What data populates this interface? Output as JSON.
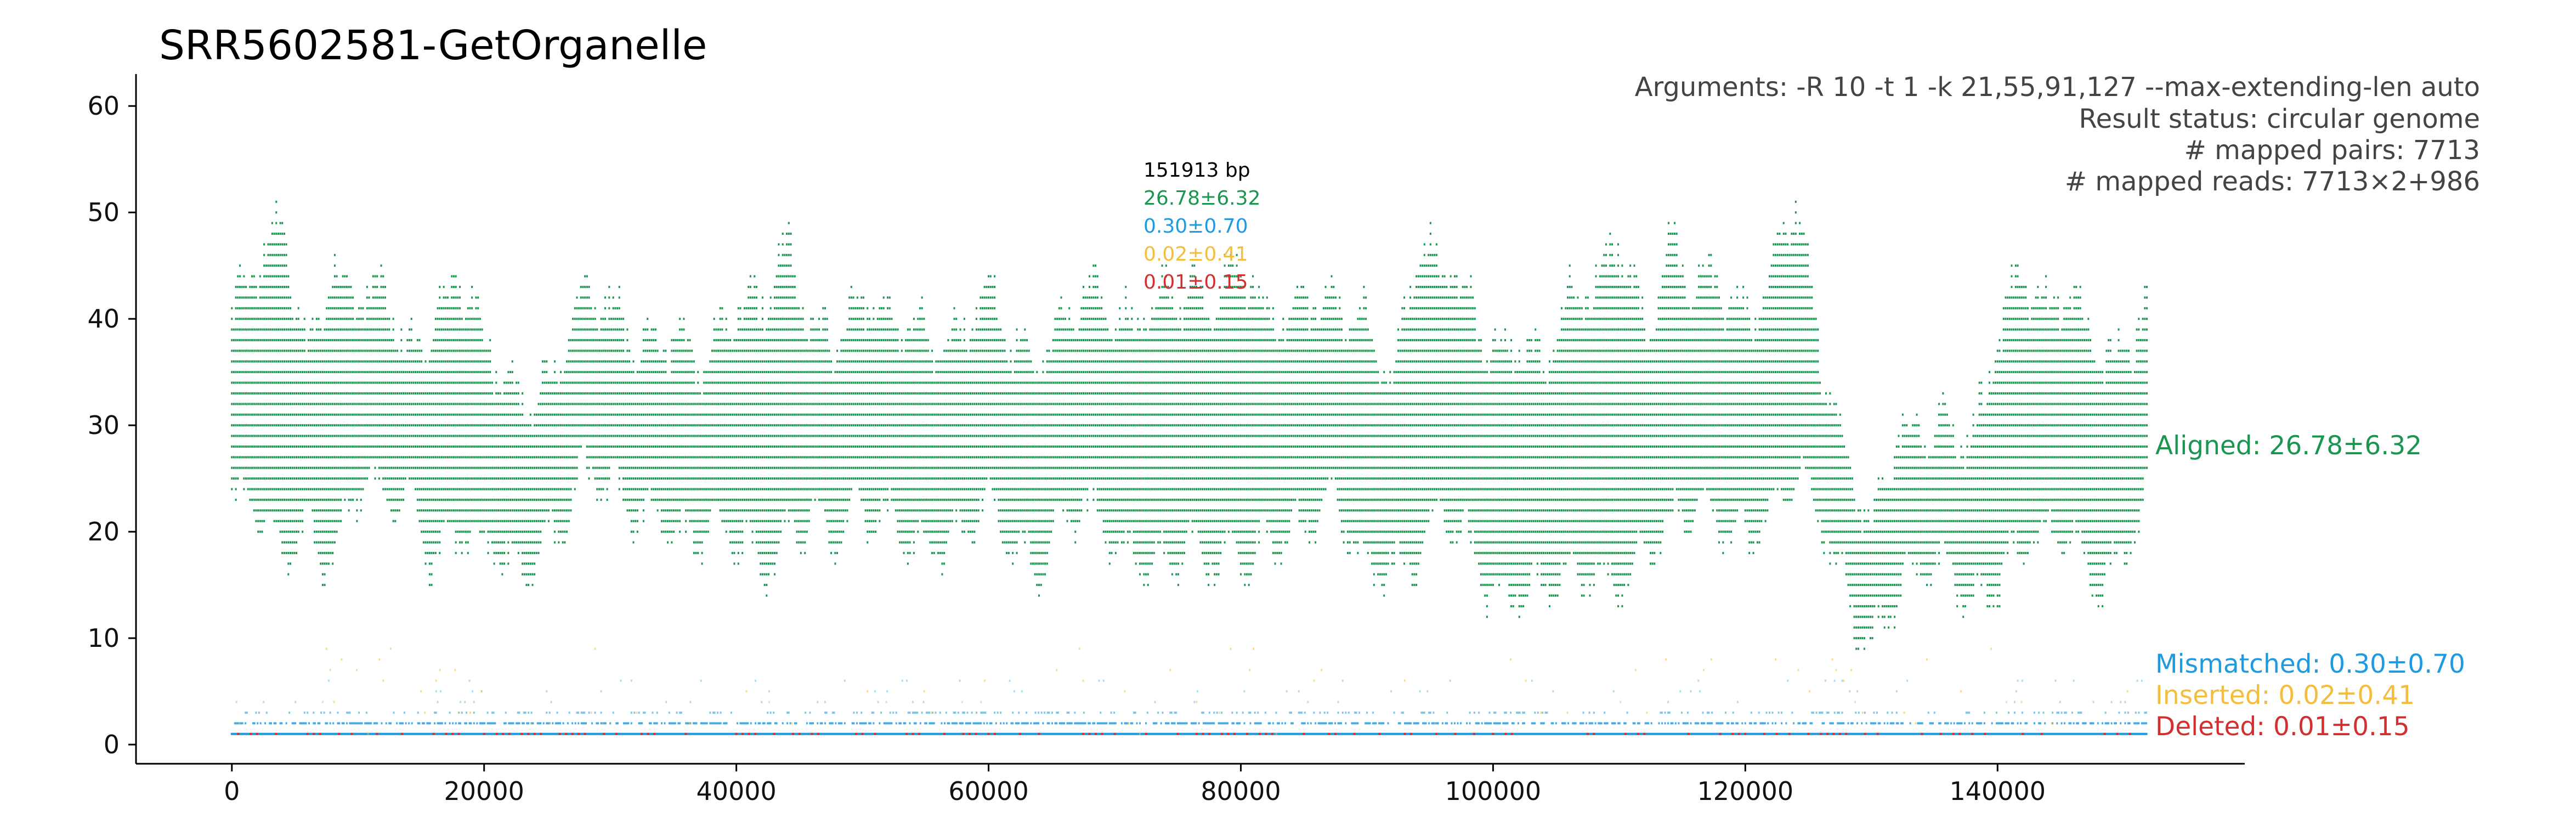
{
  "chart_data": {
    "type": "scatter",
    "title": "SRR5602581-GetOrganelle",
    "xlabel": "",
    "ylabel": "",
    "xlim": [
      -7600,
      159600
    ],
    "ylim": [
      -1.8,
      63
    ],
    "x_ticks": [
      0,
      20000,
      40000,
      60000,
      80000,
      100000,
      120000,
      140000
    ],
    "y_ticks": [
      0,
      10,
      20,
      30,
      40,
      50,
      60
    ],
    "genome_length": 151913,
    "info": [
      "Arguments: -R 10 -t 1 -k 21,55,91,127 --max-extending-len auto",
      "Result status: circular genome",
      "# mapped pairs: 7713",
      "# mapped reads: 7713×2+986"
    ],
    "summary": {
      "length": "151913 bp",
      "aligned": "26.78±6.32",
      "mismatched": "0.30±0.70",
      "inserted": "0.02±0.41",
      "deleted": "0.01±0.15"
    },
    "series": [
      {
        "name": "Aligned: 26.78±6.32",
        "color": "#1a9650",
        "mean": 26.78,
        "sd": 6.32,
        "profile_x": [
          0,
          2000,
          4000,
          6000,
          8000,
          10000,
          12000,
          14000,
          16000,
          18000,
          20000,
          22000,
          24000,
          26000,
          28000,
          30000,
          32000,
          34000,
          36000,
          38000,
          40000,
          42000,
          44000,
          46000,
          48000,
          50000,
          52000,
          54000,
          56000,
          58000,
          60000,
          62000,
          64000,
          66000,
          68000,
          70000,
          72000,
          74000,
          76000,
          78000,
          80000,
          82000,
          84000,
          86000,
          88000,
          90000,
          92000,
          94000,
          96000,
          98000,
          100000,
          102000,
          104000,
          106000,
          108000,
          110000,
          112000,
          114000,
          116000,
          118000,
          120000,
          122000,
          124000,
          126000,
          128000,
          130000,
          132000,
          134000,
          136000,
          138000,
          140000,
          142000,
          144000,
          146000,
          148000,
          150000,
          151913
        ],
        "profile_low": [
          23,
          20,
          18,
          22,
          20,
          24,
          21,
          23,
          20,
          22,
          18,
          15,
          18,
          24,
          27,
          22,
          20,
          24,
          22,
          20,
          18,
          16,
          22,
          24,
          18,
          20,
          22,
          22,
          20,
          18,
          22,
          20,
          20,
          22,
          20,
          18,
          20,
          20,
          18,
          15,
          18,
          22,
          22,
          20,
          20,
          18,
          20,
          18,
          20,
          18,
          16,
          18,
          15,
          14,
          16,
          18,
          20,
          20,
          20,
          22,
          22,
          24,
          24,
          20,
          16,
          12,
          15,
          14,
          16,
          16,
          18,
          18,
          18,
          20,
          18,
          20,
          22
        ],
        "profile_high": [
          40,
          42,
          47,
          38,
          46,
          40,
          39,
          36,
          42,
          45,
          36,
          30,
          33,
          38,
          43,
          38,
          35,
          40,
          39,
          35,
          38,
          40,
          49,
          40,
          36,
          38,
          40,
          42,
          38,
          36,
          40,
          38,
          38,
          40,
          39,
          38,
          42,
          44,
          40,
          38,
          45,
          42,
          42,
          40,
          38,
          40,
          36,
          46,
          42,
          40,
          38,
          40,
          34,
          38,
          42,
          49,
          40,
          45,
          40,
          43,
          42,
          45,
          48,
          34,
          28,
          22,
          28,
          26,
          28,
          30,
          40,
          42,
          38,
          42,
          38,
          37,
          39
        ]
      },
      {
        "name": "Mismatched: 0.30±0.70",
        "color": "#1e9ae0",
        "mean": 0.3,
        "sd": 0.7
      },
      {
        "name": "Inserted: 0.02±0.41",
        "color": "#f5bd3c",
        "mean": 0.02,
        "sd": 0.41
      },
      {
        "name": "Deleted: 0.01±0.15",
        "color": "#d32f2f",
        "mean": 0.01,
        "sd": 0.15
      }
    ],
    "grid": false,
    "legend": "right-side labels"
  }
}
